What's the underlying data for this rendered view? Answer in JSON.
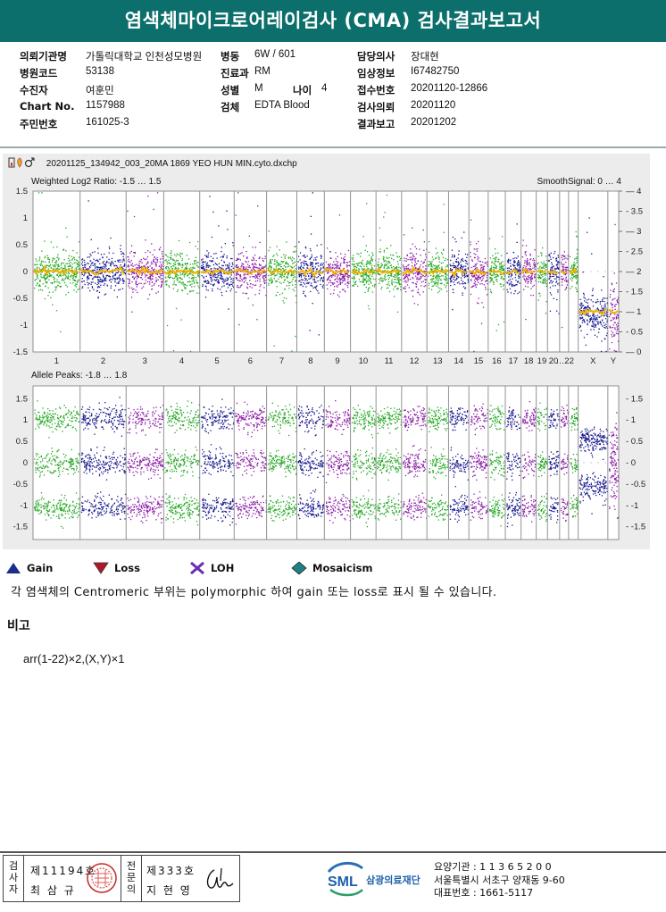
{
  "title": "염색체마이크로어레이검사 (CMA) 검사결과보고서",
  "info": {
    "rows": [
      [
        {
          "label": "의뢰기관명",
          "value": "가톨릭대학교 인천성모병원"
        },
        {
          "label": "병동",
          "value": "6W / 601"
        },
        {
          "label": "담당의사",
          "value": "장대현"
        }
      ],
      [
        {
          "label": "병원코드",
          "value": "53138"
        },
        {
          "label": "진료과",
          "value": "RM"
        },
        {
          "label": "임상정보",
          "value": "I67482750"
        }
      ],
      [
        {
          "label": "수진자",
          "value": "여훈민"
        },
        {
          "label": "성별",
          "value": "M"
        },
        {
          "label": "접수번호",
          "value": "20201120-12866"
        }
      ],
      [
        {
          "label": "Chart No.",
          "value": "1157988"
        },
        {
          "label": "검체",
          "value": "EDTA Blood"
        },
        {
          "label": "검사의뢰",
          "value": "20201120"
        }
      ],
      [
        {
          "label": "주민번호",
          "value": "161025-3"
        },
        {
          "label": "결과보고",
          "value": "20201202"
        }
      ]
    ],
    "age_label": "나이",
    "age_value": "4"
  },
  "plot": {
    "file": "20201125_134942_003_20MA 1869 YEO HUN MIN.cyto.dxchp",
    "top_label": "Weighted Log2 Ratio: -1.5 … 1.5",
    "top_right_label": "SmoothSignal: 0 … 4",
    "bottom_label": "Allele Peaks: -1.8 … 1.8",
    "top_left_ticks": [
      "1.5",
      "1",
      "0.5",
      "0",
      "-0.5",
      "-1",
      "-1.5"
    ],
    "top_right_ticks": [
      "4",
      "3.5",
      "3",
      "2.5",
      "2",
      "1.5",
      "1",
      "0.5",
      "0"
    ],
    "bottom_ticks_left": [
      "1.5",
      "1",
      "0.5",
      "0",
      "-0.5",
      "-1",
      "-1.5"
    ],
    "bottom_ticks_right": [
      "1.5",
      "1",
      "0.5",
      "0",
      "-0.5",
      "-1",
      "-1.5"
    ],
    "chromosomes": [
      "1",
      "2",
      "3",
      "4",
      "5",
      "6",
      "7",
      "8",
      "9",
      "10",
      "11",
      "12",
      "13",
      "14",
      "15",
      "16",
      "17",
      "18",
      "19",
      "20",
      "21",
      "22",
      "X",
      "Y"
    ],
    "chrom_axis_labels": [
      "1",
      "2",
      "3",
      "4",
      "5",
      "6",
      "7",
      "8",
      "9",
      "10",
      "11",
      "12",
      "13",
      "14",
      "15",
      "16",
      "17",
      "18",
      "19",
      "20",
      "…22",
      "X",
      "Y"
    ],
    "chrom_colors": [
      "green",
      "navy",
      "purple",
      "green",
      "navy",
      "purple",
      "green",
      "navy",
      "purple",
      "green",
      "green",
      "purple",
      "green",
      "navy",
      "purple",
      "green",
      "navy",
      "purple",
      "green",
      "navy",
      "purple",
      "green",
      "navy",
      "purple"
    ],
    "palette": {
      "green": "#22a822",
      "navy": "#16168f",
      "purple": "#8a1aa8",
      "smooth": "#f4b400"
    },
    "smooth_levels": {
      "autosome": 2,
      "X": 1,
      "Y": 1
    }
  },
  "legend": [
    {
      "icon": "gain-icon",
      "label": "Gain",
      "color": "#1a2d8a"
    },
    {
      "icon": "loss-icon",
      "label": "Loss",
      "color": "#b0182a"
    },
    {
      "icon": "loh-icon",
      "label": "LOH",
      "color": "#6b2bb5"
    },
    {
      "icon": "mosaicism-icon",
      "label": "Mosaicism",
      "color": "#1f7f86"
    }
  ],
  "note": "각 염색체의 Centromeric 부위는 polymorphic 하여 gain 또는 loss로 표시 될 수 있습니다.",
  "remark_title": "비고",
  "karyotype": "arr(1-22)×2,(X,Y)×1",
  "signatures": {
    "tester_label": "검사자",
    "tester_no": "제11194호",
    "tester_name": "최 삼 규",
    "reviewer_label": "전문의",
    "reviewer_no": "제333호",
    "reviewer_name": "지 현 영"
  },
  "org": {
    "logo_text": "SML",
    "name": "삼광의료재단",
    "code": "요양기관 : 1 1 3 6 5 2 0 0",
    "address": "서울특별시 서초구 양재동 9-60",
    "phone": "대표번호 : 1661-5117"
  }
}
